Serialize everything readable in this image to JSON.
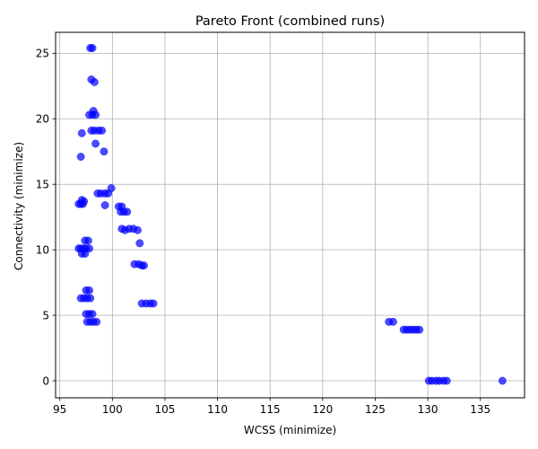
{
  "chart_data": {
    "type": "scatter",
    "title": "Pareto Front (combined runs)",
    "xlabel": "WCSS (minimize)",
    "ylabel": "Connectivity (minimize)",
    "xlim": [
      94.6,
      139.2
    ],
    "ylim": [
      -1.3,
      26.6
    ],
    "xticks": [
      95,
      100,
      105,
      110,
      115,
      120,
      125,
      130,
      135
    ],
    "yticks": [
      0,
      5,
      10,
      15,
      20,
      25
    ],
    "grid": true,
    "marker_color": "#0000ff",
    "marker_alpha": 0.7,
    "points": [
      [
        97.9,
        25.4
      ],
      [
        98.1,
        25.4
      ],
      [
        98.0,
        23.0
      ],
      [
        98.3,
        22.8
      ],
      [
        98.2,
        20.6
      ],
      [
        97.8,
        20.3
      ],
      [
        98.1,
        20.3
      ],
      [
        98.4,
        20.3
      ],
      [
        98.0,
        19.1
      ],
      [
        98.3,
        19.1
      ],
      [
        98.7,
        19.1
      ],
      [
        99.0,
        19.1
      ],
      [
        97.1,
        18.9
      ],
      [
        98.4,
        18.1
      ],
      [
        99.2,
        17.5
      ],
      [
        97.0,
        17.1
      ],
      [
        99.9,
        14.7
      ],
      [
        98.6,
        14.3
      ],
      [
        98.9,
        14.3
      ],
      [
        99.3,
        14.3
      ],
      [
        99.6,
        14.3
      ],
      [
        96.8,
        13.5
      ],
      [
        97.0,
        13.5
      ],
      [
        97.2,
        13.5
      ],
      [
        97.1,
        13.8
      ],
      [
        97.3,
        13.7
      ],
      [
        99.3,
        13.4
      ],
      [
        100.6,
        13.3
      ],
      [
        100.9,
        13.3
      ],
      [
        100.8,
        12.9
      ],
      [
        101.1,
        12.9
      ],
      [
        101.4,
        12.9
      ],
      [
        100.9,
        11.6
      ],
      [
        101.2,
        11.5
      ],
      [
        101.6,
        11.6
      ],
      [
        102.0,
        11.6
      ],
      [
        102.4,
        11.5
      ],
      [
        97.4,
        10.7
      ],
      [
        97.7,
        10.7
      ],
      [
        102.6,
        10.5
      ],
      [
        96.8,
        10.1
      ],
      [
        97.0,
        10.1
      ],
      [
        97.3,
        10.1
      ],
      [
        97.5,
        10.1
      ],
      [
        97.8,
        10.1
      ],
      [
        97.1,
        9.7
      ],
      [
        97.4,
        9.7
      ],
      [
        102.1,
        8.9
      ],
      [
        102.5,
        8.9
      ],
      [
        102.8,
        8.8
      ],
      [
        103.0,
        8.8
      ],
      [
        97.5,
        6.9
      ],
      [
        97.8,
        6.9
      ],
      [
        97.0,
        6.3
      ],
      [
        97.3,
        6.3
      ],
      [
        97.6,
        6.3
      ],
      [
        97.9,
        6.3
      ],
      [
        102.8,
        5.9
      ],
      [
        103.2,
        5.9
      ],
      [
        103.6,
        5.9
      ],
      [
        103.9,
        5.9
      ],
      [
        97.5,
        5.1
      ],
      [
        97.8,
        5.1
      ],
      [
        98.1,
        5.1
      ],
      [
        97.6,
        4.5
      ],
      [
        97.9,
        4.5
      ],
      [
        98.2,
        4.5
      ],
      [
        98.5,
        4.5
      ],
      [
        126.3,
        4.5
      ],
      [
        126.7,
        4.5
      ],
      [
        127.7,
        3.9
      ],
      [
        128.0,
        3.9
      ],
      [
        128.3,
        3.9
      ],
      [
        128.6,
        3.9
      ],
      [
        128.9,
        3.9
      ],
      [
        129.2,
        3.9
      ],
      [
        130.1,
        0.0
      ],
      [
        130.4,
        0.0
      ],
      [
        130.8,
        0.0
      ],
      [
        131.1,
        0.0
      ],
      [
        131.5,
        0.0
      ],
      [
        131.8,
        0.0
      ],
      [
        137.1,
        0.0
      ]
    ]
  }
}
